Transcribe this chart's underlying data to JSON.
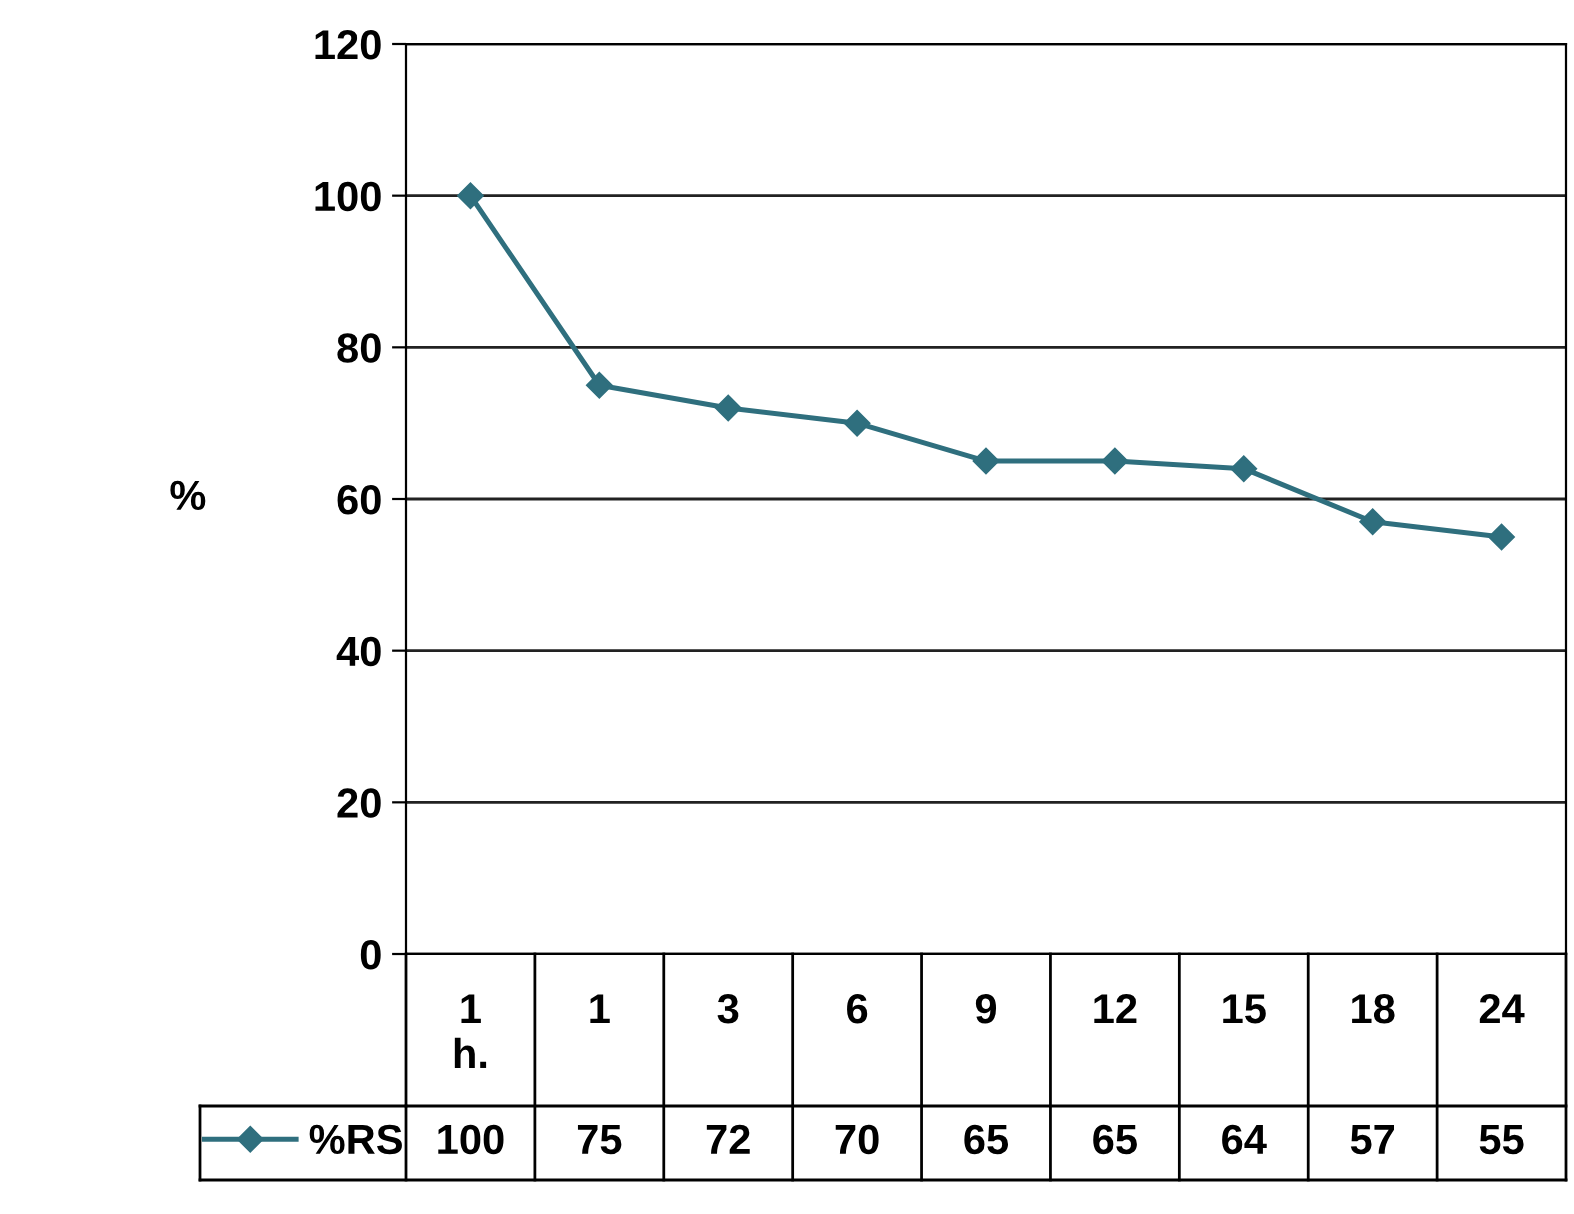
{
  "chart_data": {
    "type": "line",
    "ylabel": "%",
    "categories": [
      "1\nh.",
      "1",
      "3",
      "6",
      "9",
      "12",
      "15",
      "18",
      "24"
    ],
    "series": [
      {
        "name": "%RS",
        "color": "#2f6f7e",
        "values": [
          100,
          75,
          72,
          70,
          65,
          65,
          64,
          57,
          55
        ]
      }
    ],
    "ylim": [
      0,
      120
    ],
    "yticks": [
      0,
      20,
      40,
      60,
      80,
      100,
      120
    ],
    "grid": "y",
    "marker": "diamond",
    "line_style": "solid",
    "legend": "bottom",
    "data_labels": true
  }
}
